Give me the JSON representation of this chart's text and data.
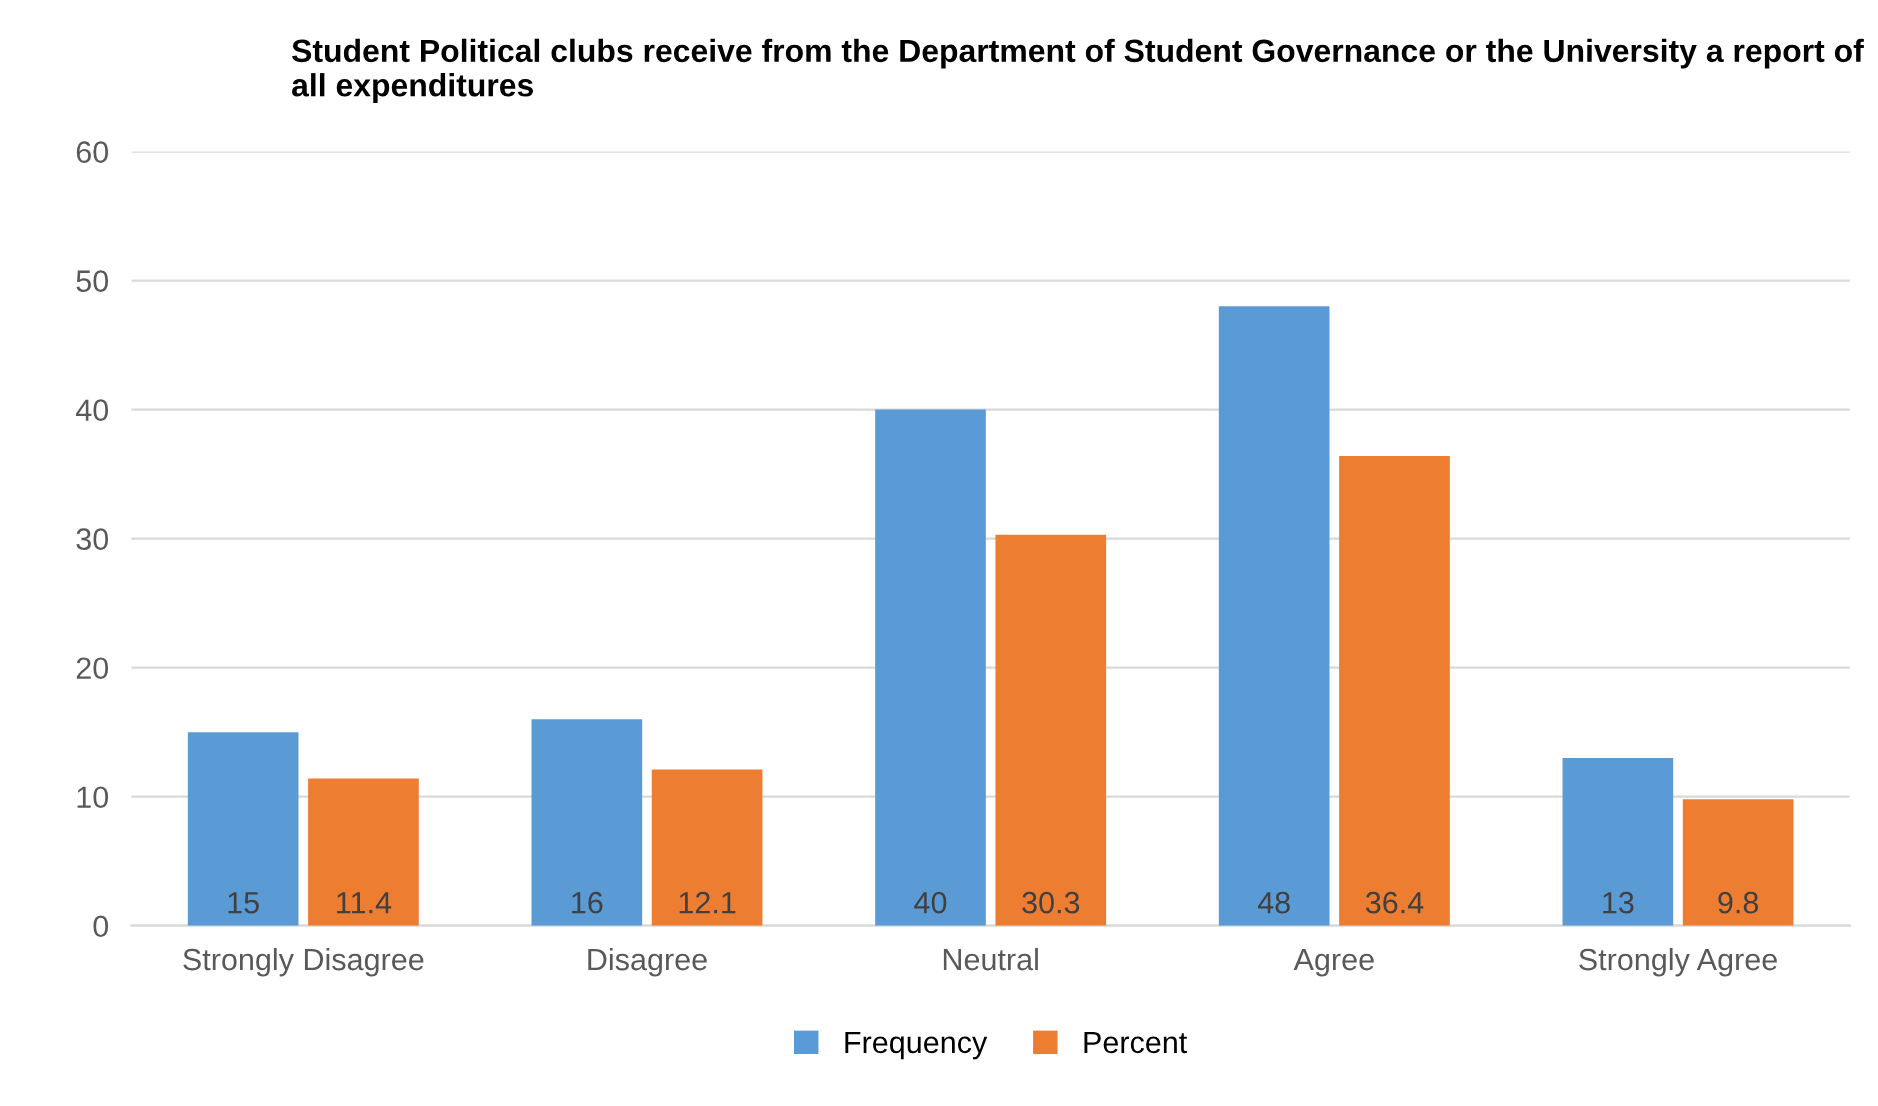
{
  "chart_data": {
    "type": "bar",
    "title": "Student Political clubs receive from the Department of Student Governance or the University a report of all expenditures",
    "categories": [
      "Strongly Disagree",
      "Disagree",
      "Neutral",
      "Agree",
      "Strongly Agree"
    ],
    "series": [
      {
        "name": "Frequency",
        "color": "#5b9bd5",
        "values": [
          15,
          16,
          40,
          48,
          13
        ]
      },
      {
        "name": "Percent",
        "color": "#ed7d31",
        "values": [
          11.4,
          12.1,
          30.3,
          36.4,
          9.8
        ]
      }
    ],
    "ylim": [
      0,
      60
    ],
    "yticks": [
      0,
      10,
      20,
      30,
      40,
      50,
      60
    ],
    "grid": "y",
    "legend": "bottom",
    "data_labels": true
  }
}
